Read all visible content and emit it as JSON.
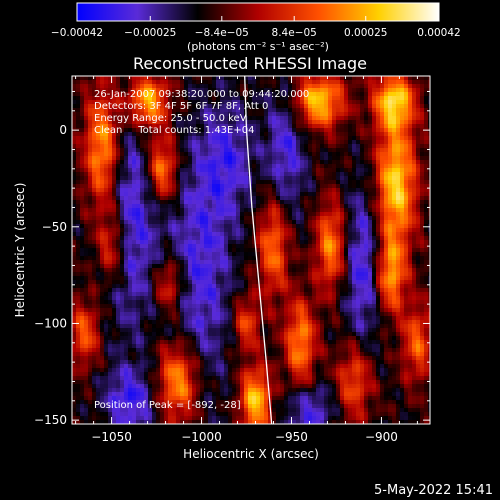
{
  "chart_data": {
    "type": "heatmap",
    "title": "Reconstructed RHESSI Image",
    "xlabel": "Heliocentric X (arcsec)",
    "ylabel": "Heliocentric Y (arcsec)",
    "xlim": [
      -1072,
      -873
    ],
    "ylim": [
      -152,
      28
    ],
    "x_ticks": [
      -1050,
      -1000,
      -950,
      -900
    ],
    "x_tick_labels": [
      "−1050",
      "−1000",
      "−950",
      "−900"
    ],
    "y_ticks": [
      0,
      -50,
      -100,
      -150
    ],
    "y_tick_labels": [
      "0",
      "−50",
      "−100",
      "−150"
    ],
    "colorbar": {
      "range": [
        -0.00042,
        0.00042
      ],
      "ticks": [
        -0.00042,
        -0.00025,
        -8.4e-05,
        8.4e-05,
        0.00025,
        0.00042
      ],
      "tick_labels": [
        "−0.00042",
        "−0.00025",
        "−8.4e−05",
        "8.4e−05",
        "0.00025",
        "0.00042"
      ],
      "units_label": "(photons cm⁻² s⁻¹ asec⁻²)",
      "colors": [
        "#0000ff",
        "#5a2bd8",
        "#000000",
        "#b00000",
        "#ff5000",
        "#ffd000",
        "#ffffff"
      ]
    },
    "info_lines": [
      "26-Jan-2007 09:38:20.000 to 09:44:20.000",
      "Detectors: 3F 4F 5F 6F 7F 8F, Att 0",
      "Energy Range: 25.0 - 50.0 keV",
      "Clean     Total counts: 1.43E+04"
    ],
    "peak_label": "Position of Peak = [-892, -28]",
    "limb_curve": [
      [
        -976,
        28
      ],
      [
        -975,
        0
      ],
      [
        -972,
        -40
      ],
      [
        -968,
        -80
      ],
      [
        -964,
        -120
      ],
      [
        -961,
        -152
      ]
    ],
    "bright_features": [
      {
        "x": -1055,
        "y": -10,
        "sx": 7,
        "sy": 22,
        "amp": 0.9
      },
      {
        "x": -1050,
        "y": -60,
        "sx": 6,
        "sy": 14,
        "amp": 0.6
      },
      {
        "x": -1030,
        "y": 15,
        "sx": 8,
        "sy": 10,
        "amp": 0.95
      },
      {
        "x": -1022,
        "y": -20,
        "sx": 6,
        "sy": 12,
        "amp": 0.8
      },
      {
        "x": -1018,
        "y": -80,
        "sx": 6,
        "sy": 10,
        "amp": 0.55
      },
      {
        "x": -1013,
        "y": -130,
        "sx": 8,
        "sy": 14,
        "amp": 0.85
      },
      {
        "x": -1065,
        "y": -105,
        "sx": 6,
        "sy": 12,
        "amp": 0.6
      },
      {
        "x": -970,
        "y": -140,
        "sx": 6,
        "sy": 12,
        "amp": 0.95
      },
      {
        "x": -975,
        "y": -100,
        "sx": 5,
        "sy": 10,
        "amp": 0.55
      },
      {
        "x": -960,
        "y": -60,
        "sx": 6,
        "sy": 18,
        "amp": 0.7
      },
      {
        "x": -945,
        "y": -110,
        "sx": 6,
        "sy": 16,
        "amp": 0.75
      },
      {
        "x": -935,
        "y": 15,
        "sx": 10,
        "sy": 10,
        "amp": 0.95
      },
      {
        "x": -928,
        "y": -60,
        "sx": 6,
        "sy": 16,
        "amp": 0.75
      },
      {
        "x": -915,
        "y": -130,
        "sx": 7,
        "sy": 14,
        "amp": 0.6
      },
      {
        "x": -892,
        "y": -28,
        "sx": 8,
        "sy": 22,
        "amp": 1.0
      },
      {
        "x": -893,
        "y": 15,
        "sx": 8,
        "sy": 10,
        "amp": 0.95
      },
      {
        "x": -895,
        "y": -75,
        "sx": 6,
        "sy": 14,
        "amp": 0.8
      },
      {
        "x": -880,
        "y": -110,
        "sx": 6,
        "sy": 14,
        "amp": 0.6
      }
    ],
    "dark_features": [
      {
        "x": -1040,
        "y": -45,
        "sx": 12,
        "sy": 40,
        "amp": -0.5
      },
      {
        "x": -1000,
        "y": -70,
        "sx": 12,
        "sy": 45,
        "amp": -0.45
      },
      {
        "x": -985,
        "y": -15,
        "sx": 10,
        "sy": 20,
        "amp": -0.4
      },
      {
        "x": -953,
        "y": -10,
        "sx": 8,
        "sy": 25,
        "amp": -0.45
      },
      {
        "x": -910,
        "y": -70,
        "sx": 8,
        "sy": 30,
        "amp": -0.5
      },
      {
        "x": -1040,
        "y": -140,
        "sx": 10,
        "sy": 12,
        "amp": -0.5
      },
      {
        "x": -940,
        "y": -145,
        "sx": 10,
        "sy": 10,
        "amp": -0.45
      }
    ]
  },
  "footer": {
    "date": "5-May-2022 15:41"
  }
}
